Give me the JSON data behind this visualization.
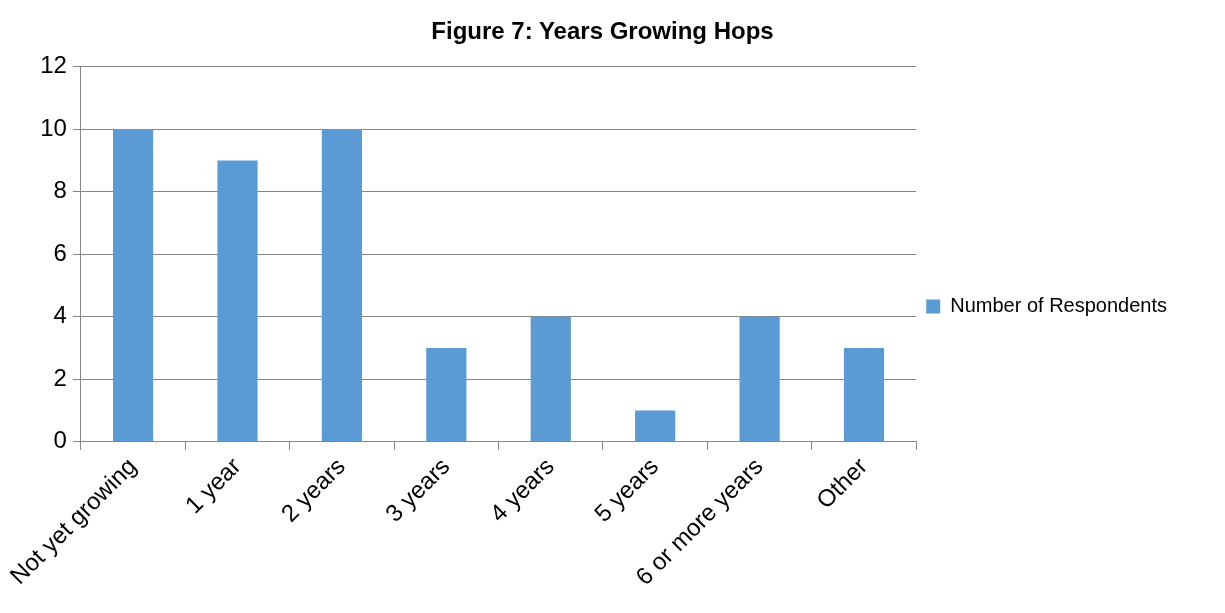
{
  "chart_data": {
    "type": "bar",
    "title": "Figure 7: Years Growing Hops",
    "categories": [
      "Not yet growing",
      "1 year",
      "2 years",
      "3 years",
      "4 years",
      "5 years",
      "6 or more years",
      "Other"
    ],
    "series": [
      {
        "name": "Number of Respondents",
        "color": "#5b9bd5",
        "values": [
          10,
          9,
          10,
          3,
          4,
          1,
          4,
          3
        ]
      }
    ],
    "ylim": [
      0,
      12
    ],
    "yticks": [
      0,
      2,
      4,
      6,
      8,
      10,
      12
    ],
    "grid": "y",
    "legend": "right"
  }
}
